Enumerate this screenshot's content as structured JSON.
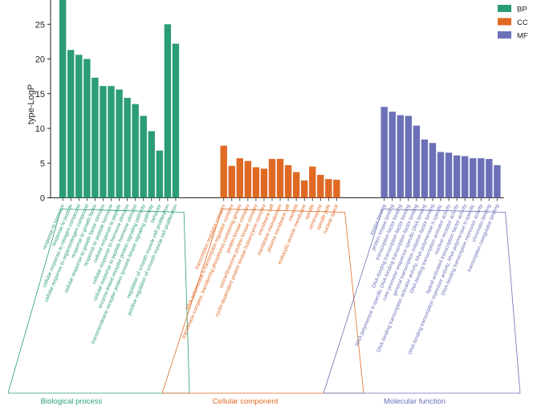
{
  "chart_data": {
    "type": "bar",
    "title": "",
    "xlabel": "",
    "ylabel": "type-LogP",
    "ylim": [
      0,
      28.5
    ],
    "yticks": [
      0,
      5,
      10,
      15,
      20,
      25
    ],
    "grid": false,
    "legend_position": "top-right",
    "colors": {
      "BP": "#2a9d78",
      "CC": "#e06a24",
      "MF": "#6b70b8"
    },
    "series": [
      {
        "name": "BP",
        "group_label": "Biological process",
        "categories": [
          "response to hormone",
          "response to peptide",
          "cellular response to nitrogen compound",
          "cellular response to organonitrogen compound",
          "response to growth factor",
          "cellular response to growth factor stimulus",
          "response to peptide hormone",
          "cellular response to peptide",
          "cellular response to hormone stimulus",
          "cellular response to peptide hormone stimulus",
          "enzyme-linked receptor protein signaling pathway",
          "transmembrane receptor protein tyrosine kinase signaling pathway",
          "behavior",
          "regulation of smooth muscle cell proliferation",
          "positive regulation of smooth muscle cell proliferation"
        ],
        "values": [
          28.8,
          21.3,
          20.6,
          20.0,
          17.3,
          16.1,
          16.1,
          15.6,
          14.4,
          13.5,
          11.8,
          9.6,
          6.8,
          25.0,
          22.2
        ]
      },
      {
        "name": "CC",
        "group_label": "Cellular component",
        "categories": [
          "transcription regulator complex",
          "RNA polymerase II transcription regulator complex",
          "transferase complex, transferring phosphorus-containing groups",
          "protein kinase complex",
          "serine/threonine protein kinase complex",
          "cyclin-dependent protein kinase holoenzyme complex",
          "membrane raft",
          "membrane microdomain",
          "plasma membrane raft",
          "caveola",
          "endocytic vesicle membrane",
          "spindle",
          "centrosome",
          "spindle pole",
          "nuclear speck"
        ],
        "values": [
          7.5,
          4.6,
          5.7,
          5.3,
          4.4,
          4.2,
          5.6,
          5.6,
          4.7,
          3.7,
          2.5,
          4.5,
          3.3,
          2.7,
          2.6
        ]
      },
      {
        "name": "MF",
        "group_label": "Molecular function",
        "categories": [
          "kinase binding",
          "protein kinase binding",
          "transcription factor binding",
          "DNA-binding transcription factor binding",
          "RNA polymerase II-specific DNA-binding transcription factor binding",
          "core promoter sequence-specific DNA binding",
          "general transcription initiation factor binding",
          "DNA-binding transcription activator activity, RNA polymerase II-specific",
          "DNA-binding transcription activator activity",
          "nuclear receptor activity",
          "ligand-activated transcription factor activity",
          "DNA-binding transcription repressor activity, RNA polymerase II-specific",
          "DNA-binding transcription repressor activity",
          "chromatin binding",
          "transcription coregulator binding"
        ],
        "values": [
          13.1,
          12.4,
          11.9,
          11.8,
          10.4,
          8.4,
          7.9,
          6.6,
          6.5,
          6.1,
          6.0,
          5.7,
          5.7,
          5.6,
          4.7
        ]
      }
    ]
  }
}
